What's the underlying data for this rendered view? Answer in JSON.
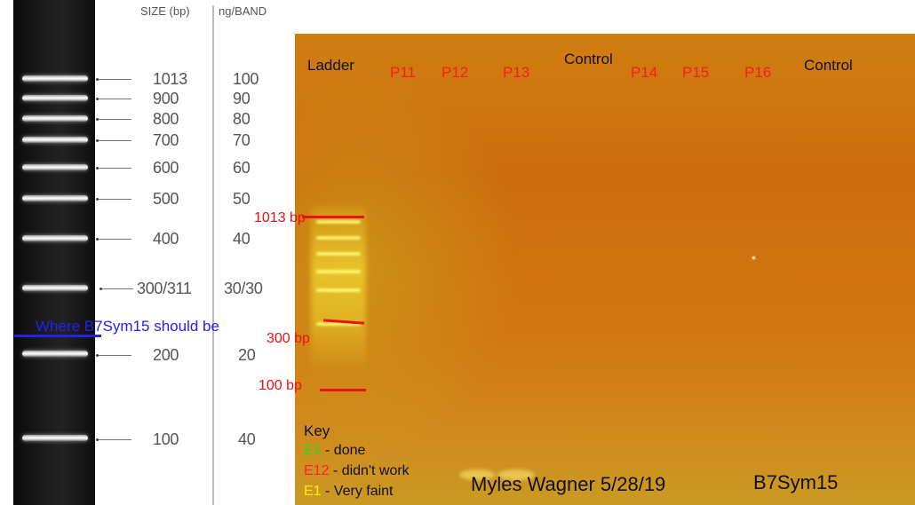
{
  "reference_ladder": {
    "size_header": "SIZE (bp)",
    "ng_header": "ng/BAND",
    "bands": [
      {
        "size": "1013",
        "ng": "100"
      },
      {
        "size": "900",
        "ng": "90"
      },
      {
        "size": "800",
        "ng": "80"
      },
      {
        "size": "700",
        "ng": "70"
      },
      {
        "size": "600",
        "ng": "60"
      },
      {
        "size": "500",
        "ng": "50"
      },
      {
        "size": "400",
        "ng": "40"
      },
      {
        "size": "300/311",
        "ng": "30/30"
      },
      {
        "size": "200",
        "ng": "20"
      },
      {
        "size": "100",
        "ng": "40"
      }
    ]
  },
  "annotation": {
    "note": "Where B7Sym15 should be",
    "color": "#2222ee"
  },
  "gel": {
    "lanes": [
      {
        "label": "Ladder",
        "color": "black"
      },
      {
        "label": "P11",
        "color": "red"
      },
      {
        "label": "P12",
        "color": "red"
      },
      {
        "label": "P13",
        "color": "red"
      },
      {
        "label": "Control",
        "color": "black"
      },
      {
        "label": "P14",
        "color": "red"
      },
      {
        "label": "P15",
        "color": "red"
      },
      {
        "label": "P16",
        "color": "red"
      },
      {
        "label": "Control",
        "color": "black"
      }
    ],
    "markers": [
      {
        "label": "1013 bp"
      },
      {
        "label": "300 bp"
      },
      {
        "label": "100 bp"
      }
    ],
    "key": {
      "title": "Key",
      "items": [
        {
          "code": "E1",
          "text": " - done",
          "color": "#22dd22"
        },
        {
          "code": "E12",
          "text": " - didn't work",
          "color": "#ff2222"
        },
        {
          "code": "E1",
          "text": " - Very faint",
          "color": "#ffee00"
        }
      ]
    },
    "author_date": "Myles Wagner 5/28/19",
    "sample_id": "B7Sym15"
  }
}
